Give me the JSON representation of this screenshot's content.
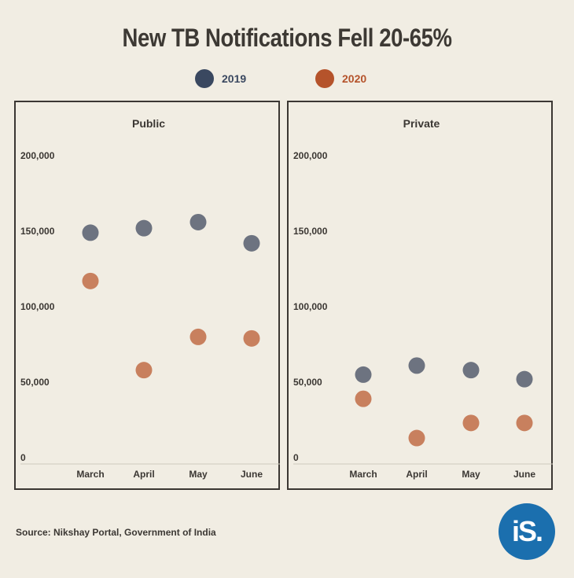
{
  "title": "New TB Notifications Fell 20-65%",
  "source": "Source: Nikshay Portal, Government of India",
  "logo_text": "iS.",
  "colors": {
    "series_2019": "#6d7380",
    "series_2020": "#c8805e",
    "legend_2019": "#3a4860",
    "legend_2020": "#b5532b",
    "background": "#f1ede3",
    "logo": "#1b6fae"
  },
  "legend": [
    {
      "label": "2019",
      "color": "#3a4860"
    },
    {
      "label": "2020",
      "color": "#b5532b"
    }
  ],
  "chart_data": [
    {
      "type": "scatter",
      "title": "Public",
      "categories": [
        "March",
        "April",
        "May",
        "June"
      ],
      "ylim": [
        0,
        200000
      ],
      "yticks": [
        0,
        50000,
        100000,
        150000,
        200000
      ],
      "ytick_labels": [
        "0",
        "50,000",
        "100,000",
        "150,000",
        "200,000"
      ],
      "series": [
        {
          "name": "2019",
          "values": [
            149000,
            152000,
            156000,
            142000
          ]
        },
        {
          "name": "2020",
          "values": [
            117000,
            58000,
            80000,
            79000
          ]
        }
      ]
    },
    {
      "type": "scatter",
      "title": "Private",
      "categories": [
        "March",
        "April",
        "May",
        "June"
      ],
      "ylim": [
        0,
        200000
      ],
      "yticks": [
        0,
        50000,
        100000,
        150000,
        200000
      ],
      "ytick_labels": [
        "0",
        "50,000",
        "100,000",
        "150,000",
        "200,000"
      ],
      "series": [
        {
          "name": "2019",
          "values": [
            55000,
            61000,
            58000,
            52000
          ]
        },
        {
          "name": "2020",
          "values": [
            39000,
            13000,
            23000,
            23000
          ]
        }
      ]
    }
  ]
}
